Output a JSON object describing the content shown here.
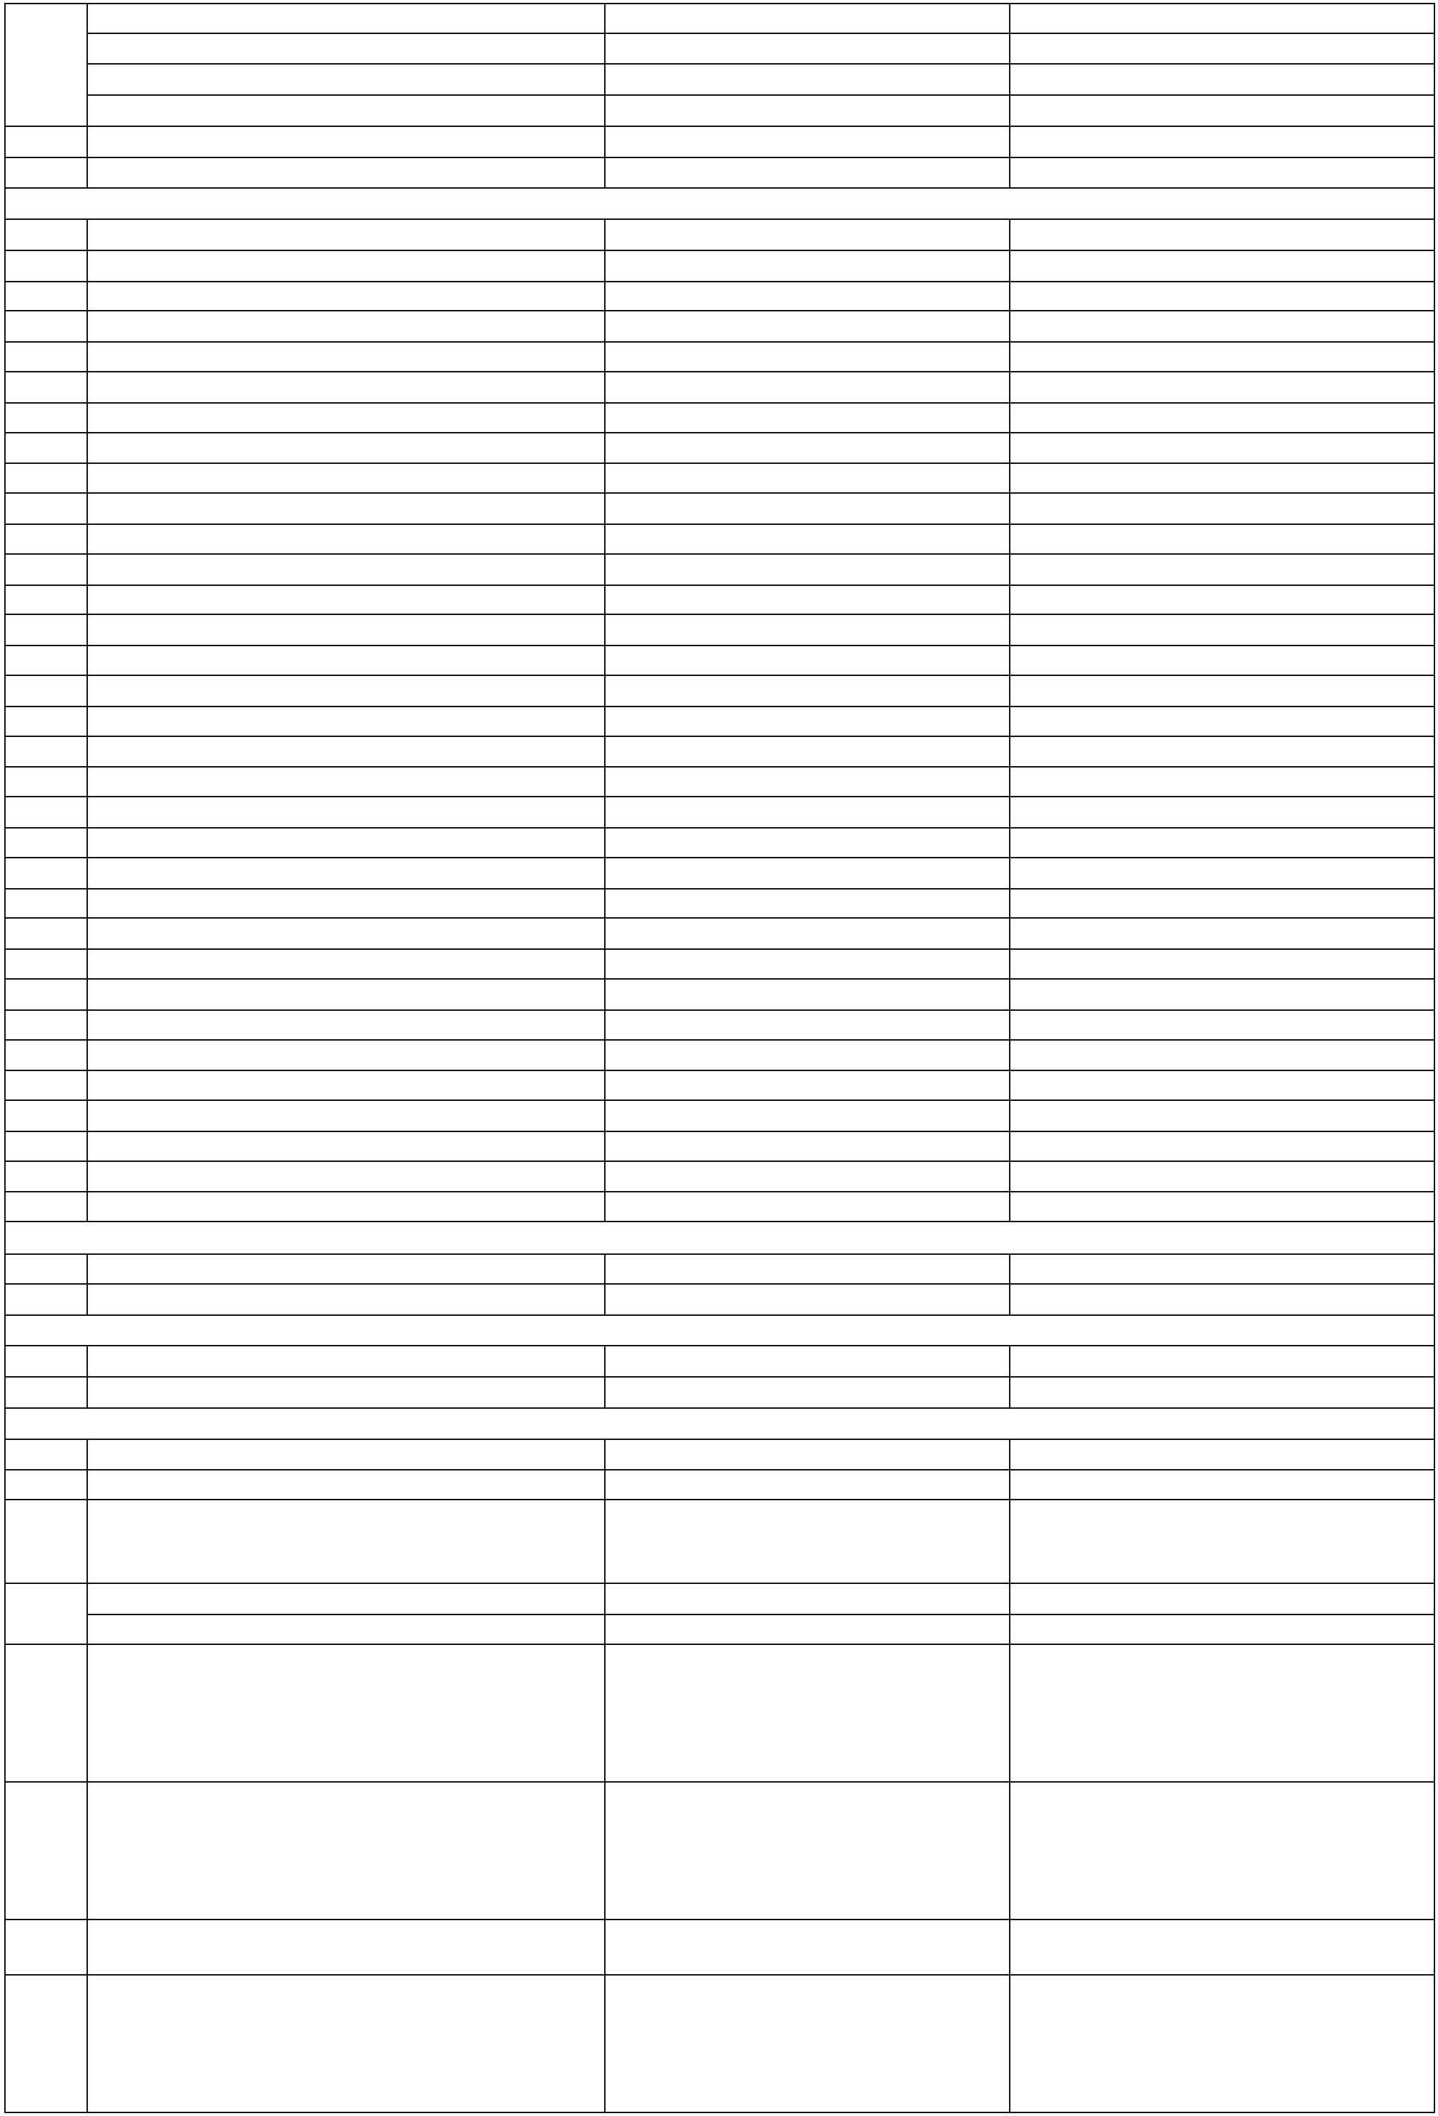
{
  "table": {
    "column_count": 4,
    "cell_text": ""
  }
}
